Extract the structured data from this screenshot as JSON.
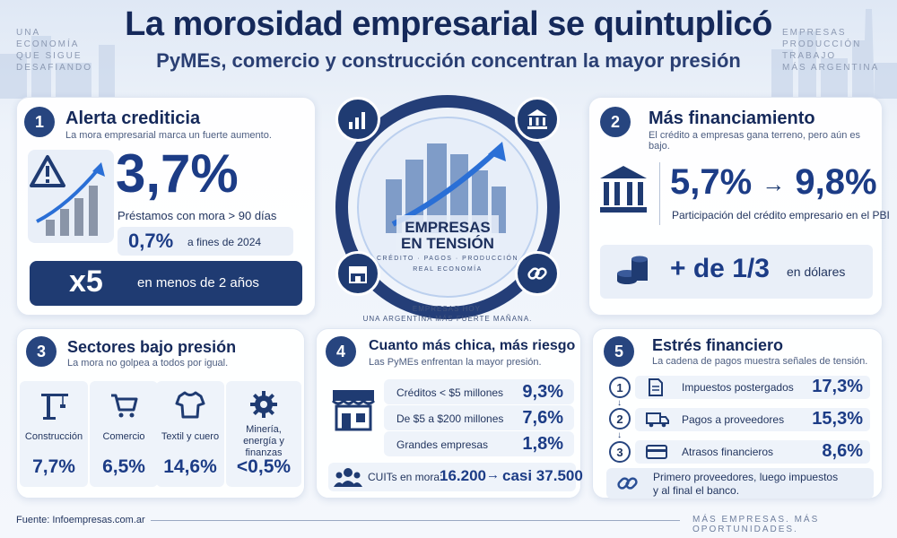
{
  "header": {
    "title": "La morosidad empresarial se quintuplicó",
    "subtitle": "PyMEs, comercio y construcción concentran la mayor presión",
    "left_note": [
      "UNA",
      "ECONOMÍA",
      "QUE SIGUE",
      "DESAFIANDO"
    ],
    "right_note": [
      "EMPRESAS",
      "PRODUCCIÓN",
      "TRABAJO",
      "MÁS ARGENTINA"
    ]
  },
  "card1": {
    "number": "1",
    "title": "Alerta crediticia",
    "subtitle": "La mora empresarial marca un fuerte aumento.",
    "big_value": "3,7%",
    "big_label": "Préstamos con mora > 90 días",
    "prev_value": "0,7%",
    "prev_label": "a fines de 2024",
    "multiplier": "x5",
    "multiplier_label": "en menos de 2 años"
  },
  "center": {
    "title_line1": "EMPRESAS",
    "title_line2": "EN TENSIÓN",
    "tags": "CRÉDITO · PAGOS · PRODUCCIÓN",
    "tag2": "REAL ECONOMÍA",
    "caption_line1": "EMPRESAS HOY.",
    "caption_line2": "UNA ARGENTINA MÁS FUERTE MAÑANA."
  },
  "card2": {
    "number": "2",
    "title": "Más financiamiento",
    "subtitle": "El crédito a empresas gana terreno, pero aún es bajo.",
    "from_value": "5,7%",
    "arrow": "→",
    "to_value": "9,8%",
    "label": "Participación del crédito empresario en el PBI",
    "dollar_value": "+ de 1/3",
    "dollar_label": "en dólares"
  },
  "card3": {
    "number": "3",
    "title": "Sectores bajo presión",
    "subtitle": "La mora no golpea a todos por igual.",
    "sectors": [
      {
        "name": "Construcción",
        "value": "7,7%",
        "icon": "crane-icon"
      },
      {
        "name": "Comercio",
        "value": "6,5%",
        "icon": "cart-icon"
      },
      {
        "name": "Textil y cuero",
        "value": "14,6%",
        "icon": "shirt-icon"
      },
      {
        "name": "Minería, energía y finanzas",
        "value": "<0,5%",
        "icon": "gear-icon"
      }
    ]
  },
  "card4": {
    "number": "4",
    "title": "Cuanto más chica, más riesgo",
    "subtitle": "Las PyMEs enfrentan la mayor presión.",
    "rows": [
      {
        "label": "Créditos < $5 millones",
        "value": "9,3%"
      },
      {
        "label": "De $5 a $200 millones",
        "value": "7,6%"
      },
      {
        "label": "Grandes empresas",
        "value": "1,8%"
      }
    ],
    "cuits_label": "CUITs en mora:",
    "cuits_from": "16.200",
    "cuits_arrow": "→",
    "cuits_to": "casi 37.500"
  },
  "card5": {
    "number": "5",
    "title": "Estrés financiero",
    "subtitle": "La cadena de pagos muestra señales de tensión.",
    "rows": [
      {
        "step": "1",
        "label": "Impuestos postergados",
        "value": "17,3%",
        "icon": "document-icon"
      },
      {
        "step": "2",
        "label": "Pagos a proveedores",
        "value": "15,3%",
        "icon": "truck-icon"
      },
      {
        "step": "3",
        "label": "Atrasos financieros",
        "value": "8,6%",
        "icon": "card-icon"
      }
    ],
    "note_line1": "Primero proveedores, luego impuestos",
    "note_line2": "y al final el banco."
  },
  "footer": {
    "source": "Fuente: Infoempresas.com.ar",
    "tagline": "MÁS EMPRESAS. MÁS OPORTUNIDADES."
  },
  "colors": {
    "navy": "#1f3b72",
    "accent": "#1c3c86",
    "panel": "#eef3fa"
  }
}
